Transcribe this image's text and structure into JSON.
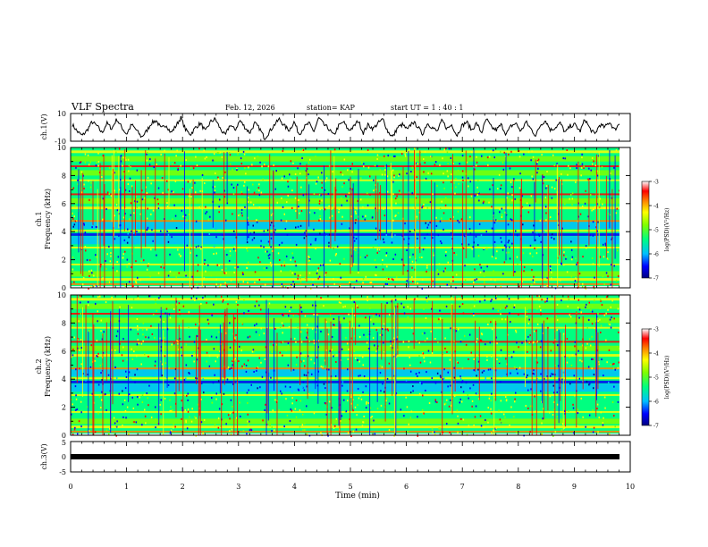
{
  "header": {
    "title": "VLF Spectra",
    "date": "Feb. 12, 2026",
    "station": "station= KAP",
    "start_ut": "start  UT  =   1 : 40 : 1"
  },
  "chart_data": [
    {
      "id": "ch1-voltage",
      "type": "line",
      "ylabel": "ch.1(V)",
      "ylim": [
        -10,
        10
      ],
      "yticks": [
        "10",
        "-10"
      ],
      "xlim": [
        0,
        10
      ],
      "series_summary": "noisy waveform between about -8 and 8 V",
      "y_values": [
        2,
        -3,
        -6,
        -2,
        4,
        1,
        -4,
        3,
        -1,
        6,
        0,
        -5,
        2,
        -2,
        -7,
        -3,
        3,
        5,
        -1,
        2,
        -4,
        1,
        7,
        -2,
        -5,
        0,
        3,
        -3,
        4,
        6,
        -1,
        -6,
        2,
        -2,
        5,
        0,
        -4,
        3,
        -1,
        -8,
        -3,
        2,
        6,
        1,
        -2,
        4,
        -5,
        0,
        3,
        -3,
        7,
        2,
        -1,
        -6,
        1,
        4,
        -2,
        0,
        5,
        -4,
        2,
        -1,
        3,
        6,
        -3,
        -7,
        0,
        2,
        -2,
        4,
        1,
        -5,
        3,
        0,
        -3,
        5,
        -1,
        2,
        -6,
        1,
        4,
        -2,
        3,
        -4,
        6,
        0,
        -2,
        2,
        -5,
        1,
        3,
        -3,
        4,
        -1,
        -6,
        2,
        5,
        -2,
        0,
        3,
        -4,
        1,
        2,
        -3,
        6,
        -1,
        -5,
        2,
        0,
        4,
        -2,
        3
      ]
    },
    {
      "id": "ch1-spectrogram",
      "type": "heatmap",
      "ylabel": "ch.1\nFrequency (kHz)",
      "ylim": [
        0,
        10
      ],
      "yticks": [
        "0",
        "2",
        "4",
        "6",
        "8",
        "10"
      ],
      "xlim": [
        0,
        10
      ],
      "colorbar": {
        "label": "log(PSD)(V²/Hz)",
        "ticks": [
          "-3",
          "-4",
          "-5",
          "-6",
          "-7"
        ],
        "range": [
          -7,
          -3
        ]
      }
    },
    {
      "id": "ch2-spectrogram",
      "type": "heatmap",
      "ylabel": "ch.2\nFrequency (kHz)",
      "ylim": [
        0,
        10
      ],
      "yticks": [
        "0",
        "2",
        "4",
        "6",
        "8",
        "10"
      ],
      "xlim": [
        0,
        10
      ],
      "colorbar": {
        "label": "log(PSD)(V²/Hz)",
        "ticks": [
          "-3",
          "-4",
          "-5",
          "-6",
          "-7"
        ],
        "range": [
          -7,
          -3
        ]
      }
    },
    {
      "id": "ch3-voltage",
      "type": "line",
      "ylabel": "ch.3(V)",
      "ylim": [
        -5,
        5
      ],
      "yticks": [
        "5",
        "0",
        "-5"
      ],
      "xlim": [
        0,
        10
      ],
      "series_summary": "flat thick trace near -1 V",
      "y_values": [
        -1,
        -1
      ]
    }
  ],
  "xaxis": {
    "label": "Time (min)",
    "ticks": [
      "0",
      "1",
      "2",
      "3",
      "4",
      "5",
      "6",
      "7",
      "8",
      "9",
      "10"
    ]
  },
  "colors": {
    "trace": "#000000",
    "cmap": [
      "#000080",
      "#0000ff",
      "#00bfff",
      "#00ff80",
      "#80ff00",
      "#ffff00",
      "#ff8000",
      "#ff0000",
      "#ffffff"
    ]
  }
}
